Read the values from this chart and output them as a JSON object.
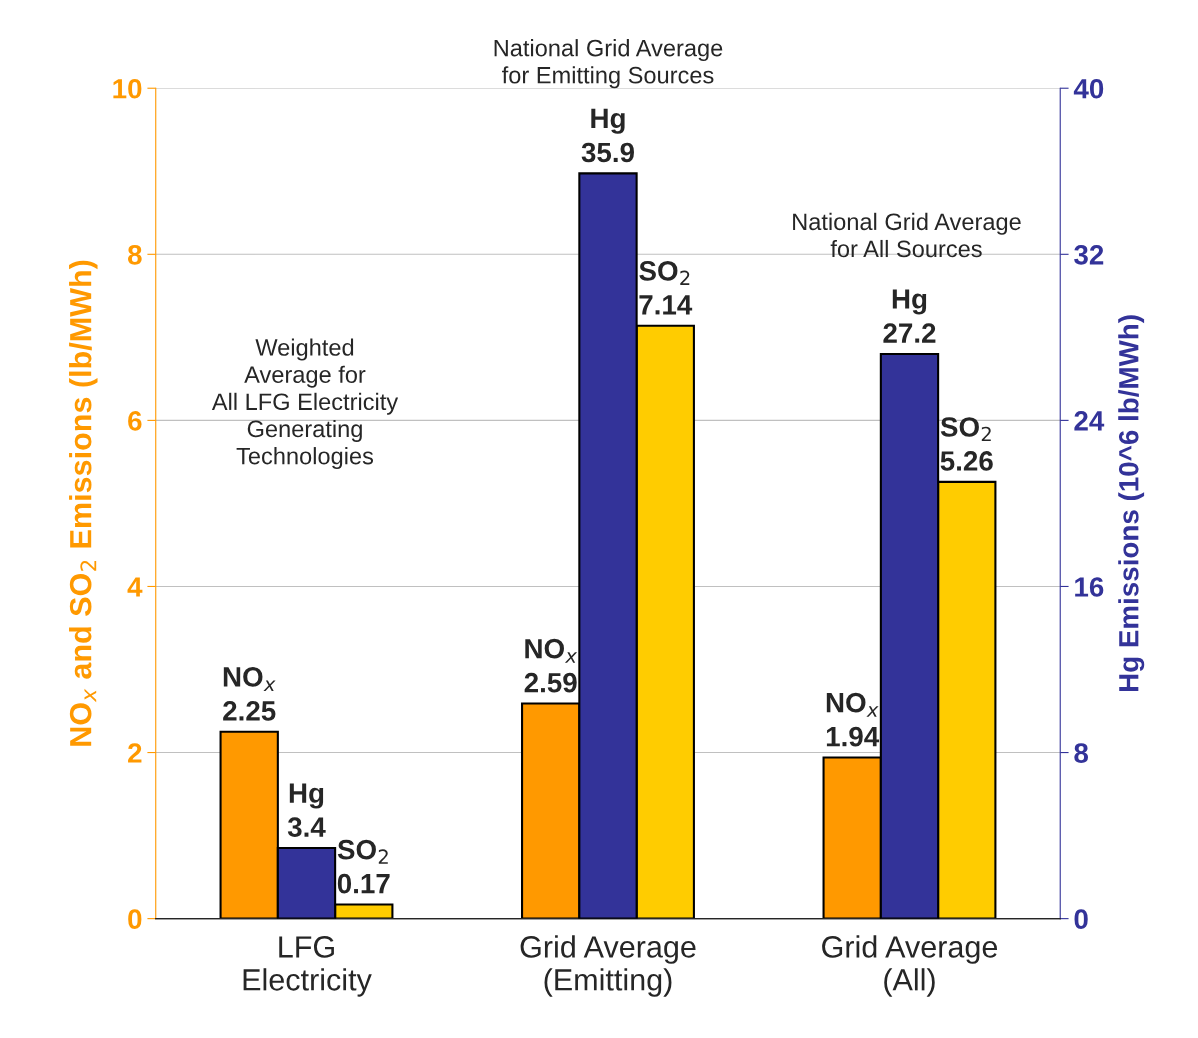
{
  "chart_data": {
    "type": "bar",
    "categories": [
      "LFG\nElectricity",
      "Grid Average\n(Emitting)",
      "Grid Average\n(All)"
    ],
    "series": [
      {
        "name": "NO$_{x}$",
        "color": "#ff9900",
        "values": [
          2.25,
          2.59,
          1.94
        ]
      },
      {
        "name": "Hg",
        "color": "#333399",
        "values": [
          3.4,
          35.9,
          27.2
        ],
        "axis": "y2"
      },
      {
        "name": "SO$_{2}$",
        "color": "#ffcc00",
        "values": [
          0.17,
          7.14,
          5.26
        ]
      }
    ],
    "ylabel": "NO$_{x}$ and SO$_{2}$ Emissions (lb/MWh)",
    "y2label": "Hg Emissions (10^6 lb/MWh)",
    "ylim": [
      0,
      10
    ],
    "yticks": [
      0,
      2,
      4,
      6,
      8,
      10
    ],
    "y2lim": [
      0,
      40
    ],
    "y2ticks": [
      0,
      8,
      16,
      24,
      32,
      40
    ],
    "annotations": [
      "Weighted\nAverage for\nAll LFG Electricity\nGenerating\nTechnologies",
      "National Grid Average\nfor Emitting Sources",
      "National Grid Average\nfor All Sources"
    ],
    "data_labels": true,
    "grid": "y",
    "legend": false
  }
}
